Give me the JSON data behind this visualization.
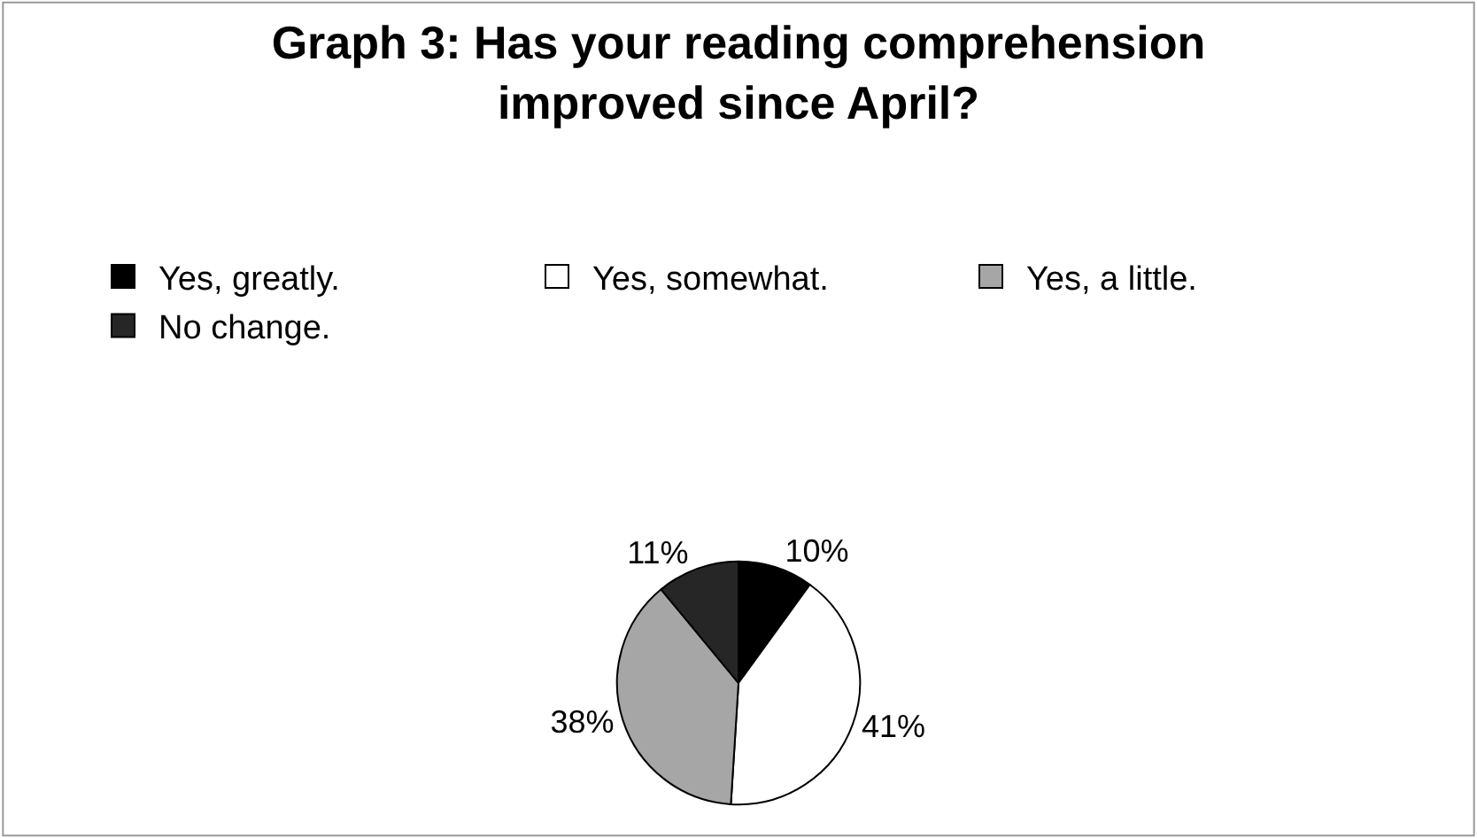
{
  "chart_data": {
    "type": "pie",
    "title": "Graph 3: Has your reading comprehension improved since April?",
    "categories": [
      "Yes, greatly.",
      "Yes, somewhat.",
      "Yes, a little.",
      "No change."
    ],
    "values": [
      10,
      41,
      38,
      11
    ],
    "value_labels": [
      "10%",
      "41%",
      "38%",
      "11%"
    ],
    "colors": [
      "#000000",
      "#ffffff",
      "#a6a6a6",
      "#262626"
    ],
    "legend": "top"
  }
}
